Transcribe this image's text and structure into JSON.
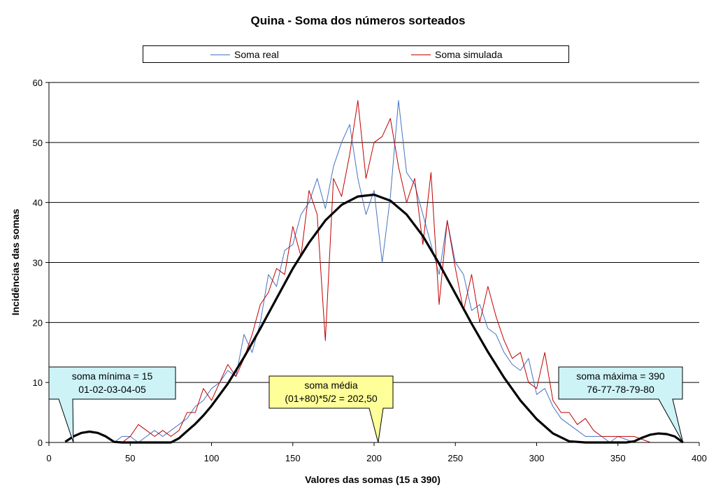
{
  "chart_data": {
    "type": "line",
    "title": "Quina - Soma dos números sorteados",
    "xlabel": "Valores das somas (15 a 390)",
    "ylabel": "Incidências das somas",
    "xlim": [
      0,
      400
    ],
    "ylim": [
      0,
      60
    ],
    "xticks": [
      0,
      50,
      100,
      150,
      200,
      250,
      300,
      350,
      400
    ],
    "yticks": [
      0,
      10,
      20,
      30,
      40,
      50,
      60
    ],
    "grid": "horizontal",
    "legend_position": "top",
    "series": [
      {
        "name": "Soma real",
        "color": "#4472c4",
        "x": [
          15,
          30,
          40,
          45,
          50,
          55,
          60,
          65,
          70,
          75,
          80,
          85,
          90,
          95,
          100,
          105,
          110,
          115,
          120,
          125,
          130,
          135,
          140,
          145,
          150,
          155,
          160,
          165,
          170,
          175,
          180,
          185,
          190,
          195,
          200,
          205,
          210,
          215,
          220,
          225,
          230,
          235,
          240,
          245,
          250,
          255,
          260,
          265,
          270,
          275,
          280,
          285,
          290,
          295,
          300,
          305,
          310,
          315,
          320,
          325,
          330,
          335,
          340,
          345,
          350,
          360,
          370,
          380,
          390
        ],
        "y": [
          0,
          0,
          0,
          1,
          1,
          0,
          1,
          2,
          1,
          2,
          3,
          4,
          6,
          7,
          9,
          10,
          12,
          11,
          18,
          15,
          20,
          28,
          26,
          32,
          33,
          38,
          40,
          44,
          39,
          46,
          50,
          53,
          44,
          38,
          42,
          30,
          41,
          57,
          45,
          43,
          38,
          33,
          28,
          37,
          30,
          28,
          22,
          23,
          19,
          18,
          15,
          13,
          12,
          14,
          8,
          9,
          6,
          4,
          3,
          2,
          1,
          1,
          1,
          0,
          1,
          0,
          0,
          0,
          0
        ]
      },
      {
        "name": "Soma simulada",
        "color": "#c00000",
        "x": [
          15,
          30,
          40,
          45,
          50,
          55,
          60,
          65,
          70,
          75,
          80,
          85,
          90,
          95,
          100,
          105,
          110,
          115,
          120,
          125,
          130,
          135,
          140,
          145,
          150,
          155,
          160,
          165,
          170,
          175,
          180,
          185,
          190,
          195,
          200,
          205,
          210,
          215,
          220,
          225,
          230,
          235,
          240,
          245,
          250,
          255,
          260,
          265,
          270,
          275,
          280,
          285,
          290,
          295,
          300,
          305,
          310,
          315,
          320,
          325,
          330,
          335,
          340,
          345,
          350,
          360,
          370,
          380,
          390
        ],
        "y": [
          0,
          0,
          0,
          0,
          1,
          3,
          2,
          1,
          2,
          1,
          2,
          5,
          5,
          9,
          7,
          10,
          13,
          11,
          14,
          18,
          23,
          25,
          29,
          28,
          36,
          31,
          42,
          38,
          17,
          44,
          41,
          48,
          57,
          44,
          50,
          51,
          54,
          46,
          40,
          44,
          33,
          45,
          23,
          37,
          29,
          22,
          28,
          20,
          26,
          21,
          17,
          14,
          15,
          10,
          9,
          15,
          7,
          5,
          5,
          3,
          4,
          2,
          1,
          1,
          1,
          1,
          0,
          0,
          0
        ]
      },
      {
        "name": "",
        "color": "#000000",
        "x": [
          10,
          15,
          20,
          25,
          30,
          35,
          40,
          45,
          50,
          55,
          60,
          65,
          70,
          75,
          80,
          85,
          90,
          95,
          100,
          110,
          120,
          130,
          140,
          150,
          160,
          170,
          180,
          190,
          200,
          210,
          220,
          230,
          240,
          250,
          260,
          270,
          280,
          290,
          300,
          310,
          320,
          330,
          335,
          340,
          345,
          350,
          355,
          360,
          365,
          370,
          375,
          380,
          385,
          390
        ],
        "y": [
          0.1,
          1.0,
          1.6,
          1.8,
          1.6,
          1.0,
          0.1,
          0,
          0,
          0,
          0,
          0,
          0,
          0,
          0.7,
          1.9,
          3.1,
          4.5,
          6.1,
          9.8,
          14.2,
          19.0,
          24.0,
          29.0,
          33.3,
          37.0,
          39.6,
          41.0,
          41.3,
          40.3,
          38.0,
          34.4,
          29.8,
          24.8,
          19.8,
          15.1,
          10.8,
          7.0,
          3.9,
          1.5,
          0.2,
          0,
          0,
          0,
          0,
          0,
          0,
          0.2,
          0.8,
          1.3,
          1.5,
          1.4,
          1.0,
          0
        ]
      }
    ],
    "annotations": [
      {
        "line1": "soma mínima = 15",
        "line2": "01-02-03-04-05",
        "x": 15,
        "y": 0
      },
      {
        "line1": "soma média",
        "line2": "(01+80)*5/2 = 202,50",
        "x": 202.5,
        "y": 0
      },
      {
        "line1": "soma máxima = 390",
        "line2": "76-77-78-79-80",
        "x": 390,
        "y": 0
      }
    ]
  }
}
